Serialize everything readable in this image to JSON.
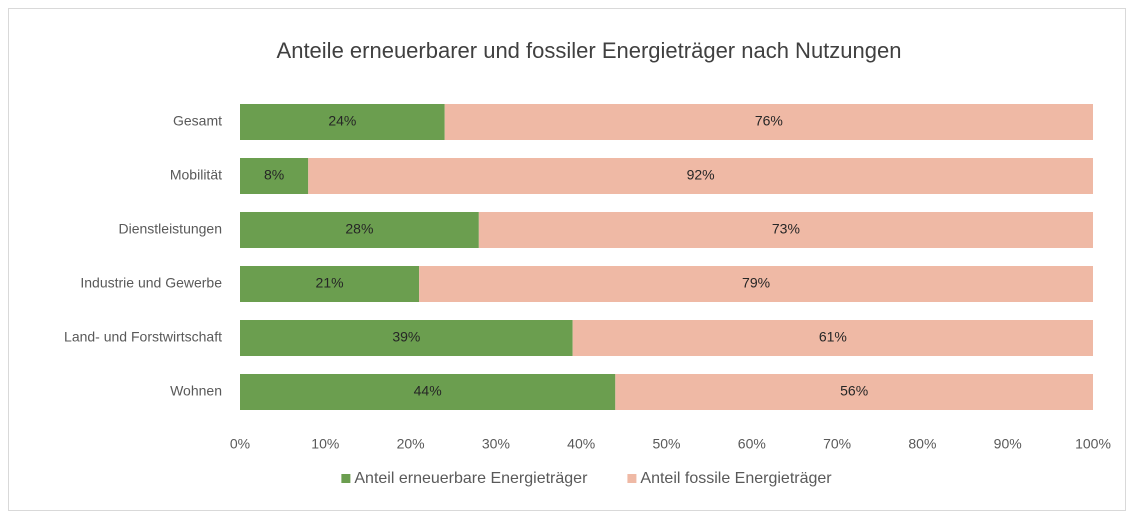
{
  "chart_data": {
    "type": "bar",
    "orientation": "horizontal",
    "stacked": true,
    "title": "Anteile erneuerbarer und fossiler Energieträger nach Nutzungen",
    "categories": [
      "Gesamt",
      "Mobilität",
      "Dienstleistungen",
      "Industrie und Gewerbe",
      "Land- und Forstwirtschaft",
      "Wohnen"
    ],
    "series": [
      {
        "name": "Anteil erneuerbare Energieträger",
        "color": "#6b9e4f",
        "values": [
          24,
          8,
          28,
          21,
          39,
          44
        ],
        "value_labels": [
          "24%",
          "8%",
          "28%",
          "21%",
          "39%",
          "44%"
        ]
      },
      {
        "name": "Anteil fossile Energieträger",
        "color": "#efb9a5",
        "values": [
          76,
          92,
          73,
          79,
          61,
          56
        ],
        "value_labels": [
          "76%",
          "92%",
          "73%",
          "79%",
          "61%",
          "56%"
        ]
      }
    ],
    "xlim": [
      0,
      100
    ],
    "xticks": [
      {
        "value": 0,
        "label": "0%"
      },
      {
        "value": 10,
        "label": "10%"
      },
      {
        "value": 20,
        "label": "20%"
      },
      {
        "value": 30,
        "label": "30%"
      },
      {
        "value": 40,
        "label": "40%"
      },
      {
        "value": 50,
        "label": "50%"
      },
      {
        "value": 60,
        "label": "60%"
      },
      {
        "value": 70,
        "label": "70%"
      },
      {
        "value": 80,
        "label": "80%"
      },
      {
        "value": 90,
        "label": "90%"
      },
      {
        "value": 100,
        "label": "100%"
      }
    ],
    "grid": false,
    "legend": "bottom"
  }
}
